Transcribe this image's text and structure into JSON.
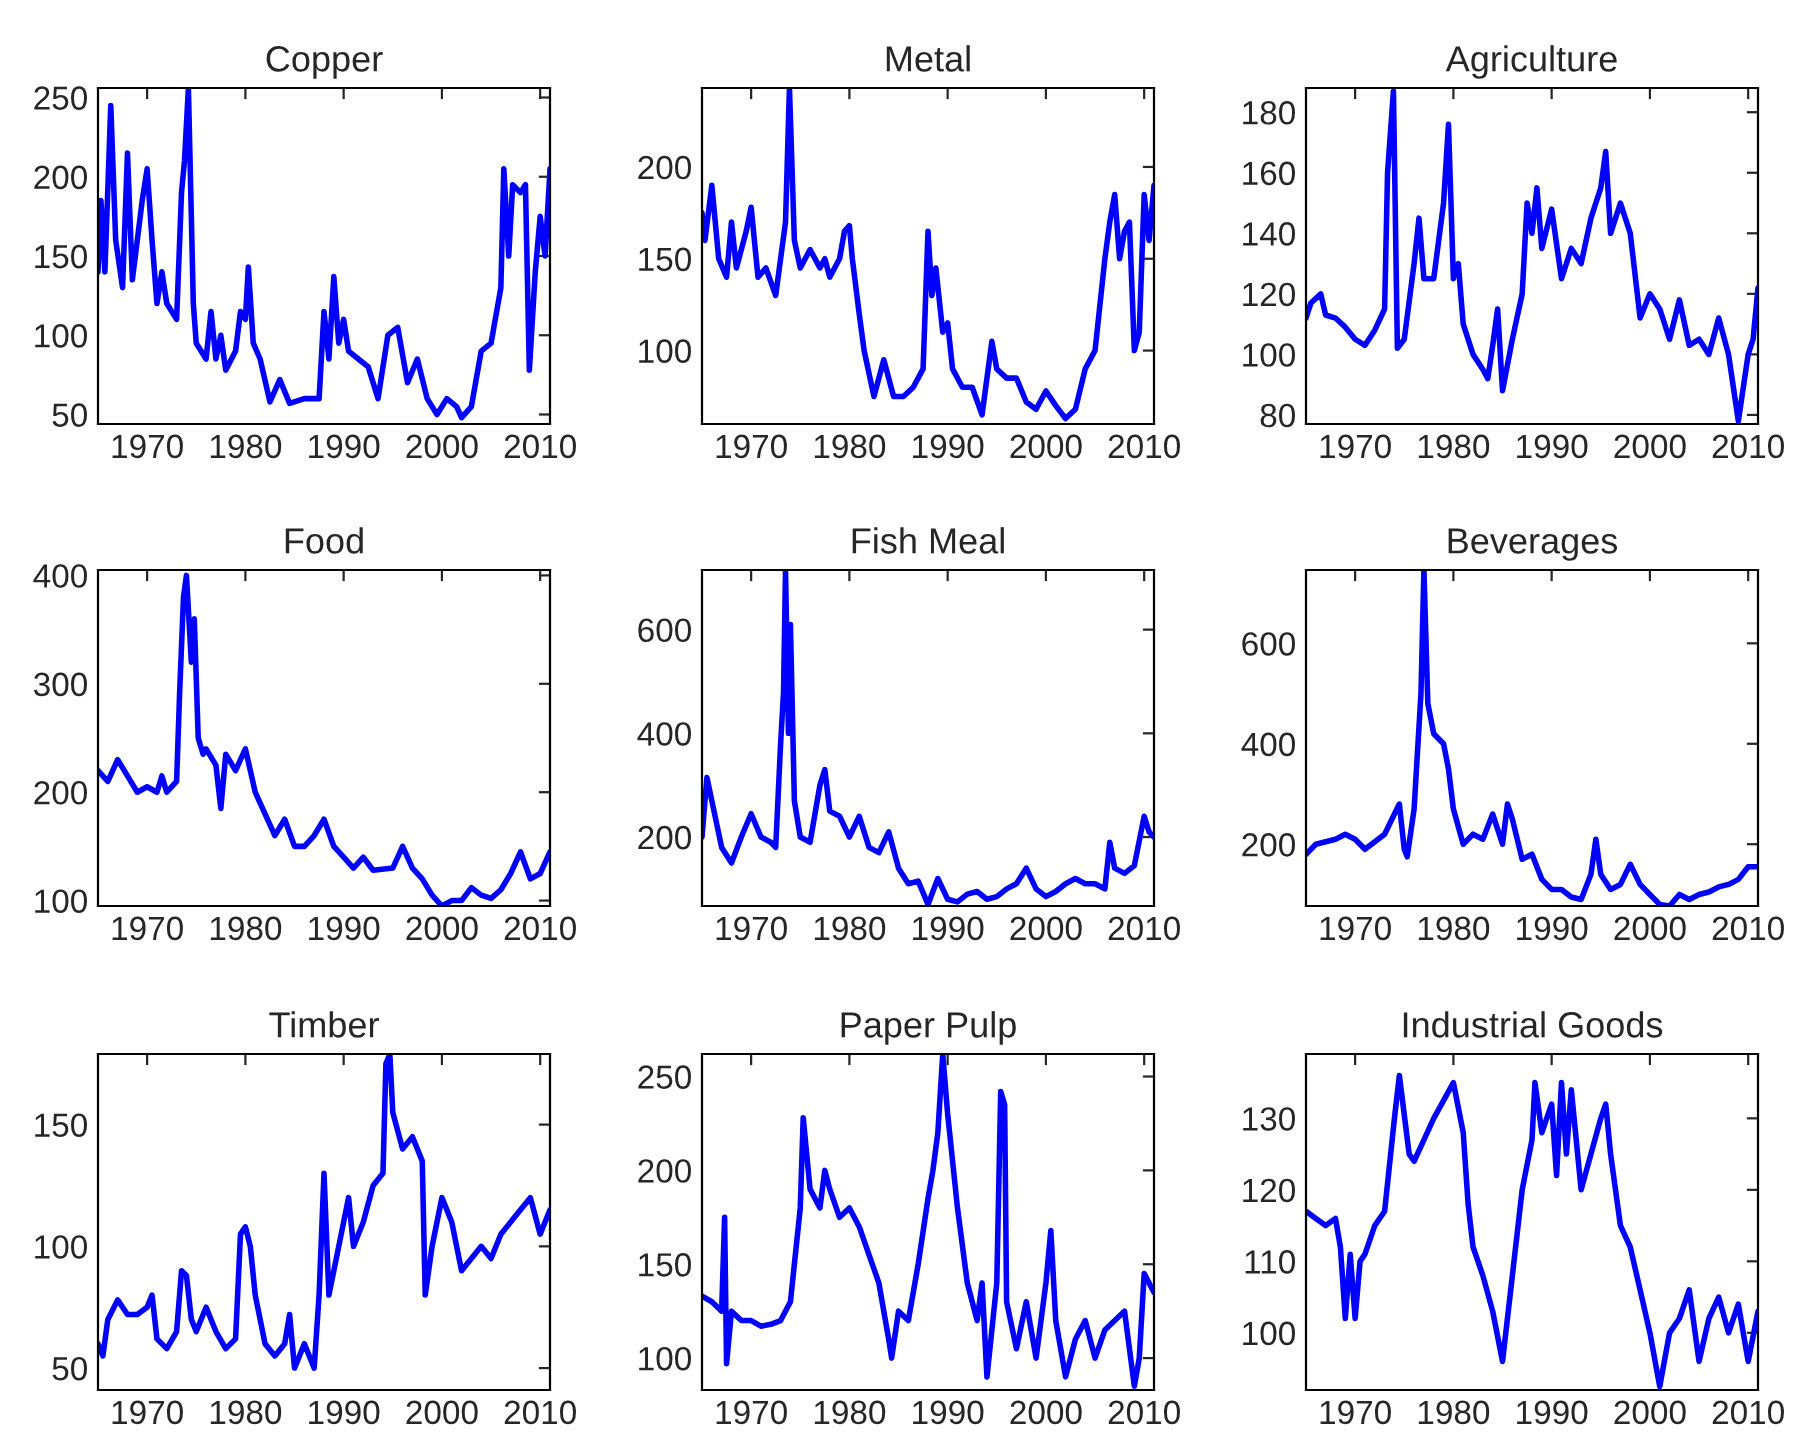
{
  "chart_data": [
    {
      "type": "line",
      "title": "Copper",
      "xlim": [
        1965,
        2011
      ],
      "xticks": [
        1970,
        1980,
        1990,
        2000,
        2010
      ],
      "ylim": [
        44,
        256
      ],
      "yticks": [
        50,
        100,
        150,
        200,
        250
      ],
      "grid": false,
      "series": [
        {
          "color": "#0000ff",
          "x": [
            1965,
            1965.3,
            1965.7,
            1966.3,
            1966.8,
            1967.5,
            1968,
            1968.5,
            1969.5,
            1970,
            1970.5,
            1971,
            1971.5,
            1972,
            1973,
            1973.5,
            1973.8,
            1974.2,
            1974.7,
            1975,
            1976,
            1976.5,
            1977,
            1977.5,
            1978,
            1979,
            1979.5,
            1980,
            1980.3,
            1980.8,
            1981.5,
            1982.5,
            1983.5,
            1984.5,
            1986,
            1987.5,
            1988,
            1988.5,
            1989,
            1989.5,
            1990,
            1990.5,
            1991.5,
            1992.5,
            1993.5,
            1994.5,
            1995.5,
            1996.5,
            1997.5,
            1998.5,
            1999.5,
            2000.5,
            2001.5,
            2002,
            2003,
            2004,
            2005,
            2006,
            2006.3,
            2006.8,
            2007.2,
            2008,
            2008.5,
            2008.9,
            2009.5,
            2010,
            2010.5,
            2011
          ],
          "values": [
            140,
            185,
            140,
            245,
            160,
            130,
            215,
            135,
            185,
            205,
            160,
            120,
            140,
            120,
            110,
            190,
            210,
            256,
            120,
            95,
            85,
            115,
            85,
            100,
            78,
            90,
            115,
            110,
            143,
            95,
            85,
            58,
            72,
            57,
            60,
            60,
            115,
            85,
            137,
            95,
            110,
            90,
            85,
            80,
            60,
            100,
            105,
            70,
            85,
            60,
            50,
            60,
            55,
            48,
            55,
            90,
            95,
            130,
            205,
            150,
            195,
            190,
            195,
            78,
            140,
            175,
            150,
            205
          ]
        }
      ]
    },
    {
      "type": "line",
      "title": "Metal",
      "xlim": [
        1965,
        2011
      ],
      "xticks": [
        1970,
        1980,
        1990,
        2000,
        2010
      ],
      "ylim": [
        60,
        243
      ],
      "yticks": [
        100,
        150,
        200
      ],
      "grid": false,
      "series": [
        {
          "color": "#0000ff",
          "x": [
            1965,
            1965.3,
            1966,
            1966.7,
            1967.5,
            1968,
            1968.5,
            1969.5,
            1970,
            1970.7,
            1971.5,
            1972.5,
            1973.5,
            1973.9,
            1974.4,
            1975,
            1976,
            1977,
            1977.5,
            1978,
            1979,
            1979.5,
            1980,
            1980.3,
            1981,
            1981.5,
            1982.5,
            1983.5,
            1984.5,
            1985.5,
            1986.5,
            1987.5,
            1988,
            1988.4,
            1988.8,
            1989.5,
            1990,
            1990.5,
            1991.5,
            1992.5,
            1993.5,
            1994.5,
            1995,
            1996,
            1997,
            1998,
            1999,
            2000,
            2001,
            2002,
            2003,
            2004,
            2005,
            2006,
            2006.5,
            2007,
            2007.5,
            2008,
            2008.5,
            2009,
            2009.5,
            2010,
            2010.5,
            2011
          ],
          "values": [
            175,
            160,
            190,
            150,
            140,
            170,
            145,
            165,
            178,
            140,
            145,
            130,
            170,
            243,
            160,
            145,
            155,
            145,
            150,
            140,
            150,
            165,
            168,
            150,
            120,
            100,
            75,
            95,
            75,
            75,
            80,
            90,
            165,
            130,
            145,
            110,
            115,
            90,
            80,
            80,
            65,
            105,
            90,
            85,
            85,
            72,
            68,
            78,
            70,
            63,
            68,
            90,
            100,
            150,
            170,
            185,
            150,
            165,
            170,
            100,
            110,
            185,
            160,
            190
          ]
        }
      ]
    },
    {
      "type": "line",
      "title": "Agriculture",
      "xlim": [
        1965,
        2011
      ],
      "xticks": [
        1970,
        1980,
        1990,
        2000,
        2010
      ],
      "ylim": [
        77,
        188
      ],
      "yticks": [
        80,
        100,
        120,
        140,
        160,
        180
      ],
      "grid": false,
      "series": [
        {
          "color": "#0000ff",
          "x": [
            1965,
            1965.5,
            1966.5,
            1967,
            1968,
            1969,
            1970,
            1971,
            1972,
            1973,
            1973.3,
            1973.9,
            1974.3,
            1975,
            1976,
            1976.5,
            1977,
            1978,
            1979,
            1979.5,
            1980,
            1980.5,
            1981,
            1982,
            1983,
            1983.5,
            1984,
            1984.5,
            1985,
            1986,
            1987,
            1987.5,
            1988,
            1988.5,
            1989,
            1990,
            1991,
            1992,
            1993,
            1994,
            1995,
            1995.5,
            1996,
            1997,
            1998,
            1999,
            2000,
            2001,
            2002,
            2003,
            2004,
            2005,
            2006,
            2007,
            2008,
            2009,
            2010,
            2010.5,
            2011
          ],
          "values": [
            112,
            117,
            120,
            113,
            112,
            109,
            105,
            103,
            108,
            115,
            160,
            187,
            102,
            105,
            130,
            145,
            125,
            125,
            150,
            176,
            125,
            130,
            110,
            100,
            95,
            92,
            103,
            115,
            88,
            105,
            120,
            150,
            140,
            155,
            135,
            148,
            125,
            135,
            130,
            145,
            155,
            167,
            140,
            150,
            140,
            112,
            120,
            115,
            105,
            118,
            103,
            105,
            100,
            112,
            100,
            78,
            100,
            105,
            122
          ]
        }
      ]
    },
    {
      "type": "line",
      "title": "Food",
      "xlim": [
        1965,
        2011
      ],
      "xticks": [
        1970,
        1980,
        1990,
        2000,
        2010
      ],
      "ylim": [
        95,
        405
      ],
      "yticks": [
        100,
        200,
        300,
        400
      ],
      "grid": false,
      "series": [
        {
          "color": "#0000ff",
          "x": [
            1965,
            1966,
            1967,
            1968,
            1969,
            1970,
            1971,
            1971.5,
            1972,
            1973,
            1973.3,
            1973.7,
            1974,
            1974.5,
            1974.8,
            1975.2,
            1975.7,
            1976,
            1977,
            1977.5,
            1978,
            1979,
            1980,
            1981,
            1982,
            1983,
            1984,
            1985,
            1986,
            1987,
            1988,
            1989,
            1990,
            1991,
            1992,
            1993,
            1995,
            1996,
            1997,
            1998,
            1999,
            2000,
            2001,
            2002,
            2003,
            2004,
            2005,
            2006,
            2007,
            2008,
            2009,
            2010,
            2011
          ],
          "values": [
            220,
            210,
            230,
            215,
            200,
            205,
            200,
            215,
            200,
            210,
            290,
            380,
            400,
            320,
            360,
            250,
            235,
            240,
            225,
            185,
            235,
            220,
            240,
            200,
            180,
            160,
            175,
            150,
            150,
            160,
            175,
            150,
            140,
            130,
            140,
            128,
            130,
            150,
            130,
            120,
            105,
            95,
            100,
            100,
            112,
            105,
            102,
            110,
            125,
            145,
            120,
            125,
            145
          ]
        }
      ]
    },
    {
      "type": "line",
      "title": "Fish Meal",
      "xlim": [
        1965,
        2011
      ],
      "xticks": [
        1970,
        1980,
        1990,
        2000,
        2010
      ],
      "ylim": [
        67,
        715
      ],
      "yticks": [
        200,
        400,
        600
      ],
      "grid": false,
      "series": [
        {
          "color": "#0000ff",
          "x": [
            1965,
            1965.5,
            1966,
            1967,
            1968,
            1969,
            1970,
            1971,
            1972,
            1972.5,
            1973,
            1973.3,
            1973.5,
            1973.8,
            1974,
            1974.4,
            1975,
            1976,
            1977,
            1977.5,
            1978,
            1979,
            1980,
            1981,
            1982,
            1983,
            1984,
            1985,
            1986,
            1987,
            1988,
            1989,
            1990,
            1991,
            1992,
            1993,
            1994,
            1995,
            1996,
            1997,
            1998,
            1999,
            2000,
            2001,
            2002,
            2003,
            2004,
            2005,
            2006,
            2006.5,
            2007,
            2008,
            2009,
            2010,
            2010.5,
            2011
          ],
          "values": [
            200,
            315,
            270,
            180,
            150,
            200,
            245,
            200,
            190,
            180,
            380,
            480,
            715,
            400,
            610,
            270,
            200,
            190,
            300,
            330,
            250,
            240,
            200,
            240,
            180,
            170,
            210,
            140,
            110,
            115,
            70,
            120,
            80,
            75,
            90,
            95,
            80,
            85,
            100,
            110,
            140,
            100,
            85,
            95,
            110,
            120,
            110,
            110,
            100,
            190,
            140,
            130,
            145,
            240,
            210,
            200
          ]
        }
      ]
    },
    {
      "type": "line",
      "title": "Beverages",
      "xlim": [
        1965,
        2011
      ],
      "xticks": [
        1970,
        1980,
        1990,
        2000,
        2010
      ],
      "ylim": [
        77,
        746
      ],
      "yticks": [
        200,
        400,
        600
      ],
      "grid": false,
      "series": [
        {
          "color": "#0000ff",
          "x": [
            1965,
            1966,
            1967,
            1968,
            1969,
            1970,
            1971,
            1972,
            1973,
            1974,
            1974.5,
            1975,
            1975.3,
            1976,
            1976.7,
            1977,
            1977.4,
            1978,
            1979,
            1979.5,
            1980,
            1981,
            1982,
            1983,
            1984,
            1985,
            1985.5,
            1986,
            1987,
            1988,
            1989,
            1990,
            1991,
            1992,
            1993,
            1994,
            1994.5,
            1995,
            1996,
            1997,
            1998,
            1999,
            2000,
            2001,
            2002,
            2003,
            2004,
            2005,
            2006,
            2007,
            2008,
            2009,
            2010,
            2011
          ],
          "values": [
            180,
            200,
            205,
            210,
            220,
            210,
            190,
            205,
            220,
            260,
            280,
            190,
            175,
            270,
            500,
            746,
            480,
            420,
            400,
            350,
            270,
            200,
            220,
            210,
            260,
            200,
            280,
            250,
            170,
            180,
            130,
            110,
            110,
            95,
            90,
            140,
            210,
            140,
            110,
            120,
            160,
            120,
            100,
            80,
            77,
            100,
            90,
            100,
            105,
            115,
            120,
            130,
            155,
            155
          ]
        }
      ]
    },
    {
      "type": "line",
      "title": "Timber",
      "xlim": [
        1965,
        2011
      ],
      "xticks": [
        1970,
        1980,
        1990,
        2000,
        2010
      ],
      "ylim": [
        41,
        179
      ],
      "yticks": [
        50,
        100,
        150
      ],
      "grid": false,
      "series": [
        {
          "color": "#0000ff",
          "x": [
            1965,
            1965.5,
            1966,
            1967,
            1968,
            1969,
            1970,
            1970.5,
            1971,
            1972,
            1973,
            1973.5,
            1974,
            1974.5,
            1975,
            1976,
            1977,
            1978,
            1979,
            1979.5,
            1980,
            1980.5,
            1981,
            1982,
            1983,
            1983.5,
            1984,
            1984.5,
            1985,
            1985.5,
            1986,
            1987,
            1987.5,
            1988,
            1988.5,
            1989,
            1990,
            1990.5,
            1991,
            1992,
            1993,
            1994,
            1994.3,
            1994.7,
            1995,
            1996,
            1997,
            1998,
            1998.3,
            1999,
            2000,
            2001,
            2002,
            2003,
            2004,
            2005,
            2006,
            2007,
            2008,
            2009,
            2010,
            2011
          ],
          "values": [
            60,
            55,
            70,
            78,
            72,
            72,
            75,
            80,
            62,
            58,
            65,
            90,
            88,
            70,
            65,
            75,
            65,
            58,
            62,
            105,
            108,
            100,
            80,
            60,
            55,
            null,
            60,
            72,
            50,
            null,
            60,
            50,
            80,
            130,
            80,
            90,
            110,
            120,
            100,
            110,
            125,
            130,
            175,
            179,
            155,
            140,
            145,
            135,
            80,
            100,
            120,
            110,
            90,
            95,
            100,
            95,
            105,
            110,
            115,
            120,
            105,
            115
          ]
        }
      ]
    },
    {
      "type": "line",
      "title": "Paper Pulp",
      "xlim": [
        1965,
        2011
      ],
      "xticks": [
        1970,
        1980,
        1990,
        2000,
        2010
      ],
      "ylim": [
        83,
        262
      ],
      "yticks": [
        100,
        150,
        200,
        250
      ],
      "grid": false,
      "series": [
        {
          "color": "#0000ff",
          "x": [
            1965,
            1966,
            1967,
            1967.3,
            1967.5,
            1968,
            1969,
            1970,
            1971,
            1972,
            1973,
            1974,
            1975,
            1975.3,
            1976,
            1977,
            1977.5,
            1978,
            1979,
            1980,
            1981,
            1982,
            1983,
            1984,
            1984.3,
            1985,
            1986,
            1987,
            1988,
            1988.5,
            1989,
            1989.5,
            1990,
            1991,
            1992,
            1993,
            1993.5,
            1994,
            1995,
            1995.4,
            1995.8,
            1996,
            1997,
            1998,
            1999,
            2000,
            2000.5,
            2001,
            2002,
            2003,
            2004,
            2005,
            2006,
            2007,
            2008,
            2009,
            2009.5,
            2010,
            2011
          ],
          "values": [
            133,
            130,
            125,
            175,
            97,
            125,
            120,
            120,
            117,
            118,
            120,
            130,
            180,
            228,
            190,
            180,
            200,
            190,
            175,
            180,
            170,
            155,
            140,
            110,
            100,
            125,
            120,
            150,
            185,
            200,
            220,
            262,
            230,
            180,
            140,
            120,
            140,
            90,
            140,
            242,
            235,
            130,
            105,
            130,
            100,
            140,
            168,
            120,
            90,
            110,
            120,
            100,
            115,
            120,
            125,
            85,
            100,
            145,
            135
          ]
        }
      ]
    },
    {
      "type": "line",
      "title": "Industrial Goods",
      "xlim": [
        1965,
        2011
      ],
      "xticks": [
        1970,
        1980,
        1990,
        2000,
        2010
      ],
      "ylim": [
        92,
        139
      ],
      "yticks": [
        100,
        110,
        120,
        130
      ],
      "grid": false,
      "series": [
        {
          "color": "#0000ff",
          "x": [
            1965,
            1966,
            1967,
            1968,
            1968.5,
            1969,
            1969.5,
            1970,
            1970.5,
            1971,
            1972,
            1973,
            1974,
            1974.5,
            1975,
            1975.5,
            1976,
            1977,
            1978,
            1979,
            1980,
            1981,
            1981.5,
            1982,
            1983,
            1984,
            1985,
            1986,
            1987,
            1988,
            1988.3,
            1989,
            1990,
            1990.5,
            1991,
            1991.5,
            1992,
            1993,
            1994,
            1995,
            1995.5,
            1996,
            1997,
            1998,
            1999,
            2000,
            2001,
            2002,
            2003,
            2004,
            2005,
            2006,
            2007,
            2008,
            2009,
            2010,
            2011
          ],
          "values": [
            117,
            116,
            115,
            116,
            112,
            102,
            111,
            102,
            110,
            111,
            115,
            117,
            130,
            136,
            null,
            125,
            124,
            127,
            130,
            null,
            135,
            128,
            118,
            112,
            108,
            103,
            96,
            108,
            120,
            127,
            135,
            128,
            132,
            122,
            135,
            125,
            134,
            120,
            125,
            130,
            132,
            125,
            115,
            112,
            106,
            100,
            92.5,
            100,
            102,
            106,
            96,
            102,
            105,
            100,
            104,
            96,
            103
          ]
        }
      ]
    }
  ]
}
